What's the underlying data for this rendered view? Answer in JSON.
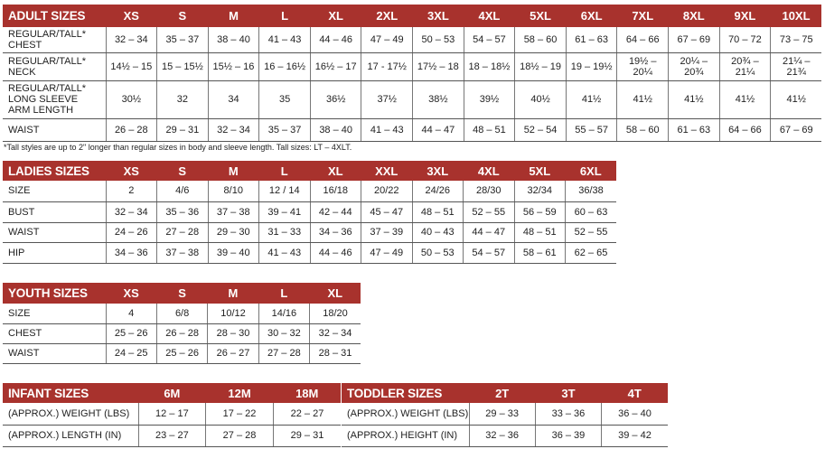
{
  "header_color": "#a8322d",
  "tables": [
    {
      "id": "adult",
      "title": "ADULT SIZES",
      "columns": [
        "XS",
        "S",
        "M",
        "L",
        "XL",
        "2XL",
        "3XL",
        "4XL",
        "5XL",
        "6XL",
        "7XL",
        "8XL",
        "9XL",
        "10XL"
      ],
      "rows": [
        {
          "label": "REGULAR/TALL*\nCHEST",
          "values": [
            "32 – 34",
            "35 – 37",
            "38 – 40",
            "41 – 43",
            "44 – 46",
            "47 – 49",
            "50 – 53",
            "54 – 57",
            "58 – 60",
            "61 – 63",
            "64 – 66",
            "67 – 69",
            "70 – 72",
            "73 – 75"
          ]
        },
        {
          "label": "REGULAR/TALL*\nNECK",
          "values": [
            "14½ – 15",
            "15 – 15½",
            "15½ – 16",
            "16 – 16½",
            "16½ – 17",
            "17 - 17½",
            "17½ – 18",
            "18 – 18½",
            "18½ – 19",
            "19 – 19½",
            "19½ –\n20¼",
            "20¼ –\n20¾",
            "20¾ –\n21¼",
            "21¼ –\n21¾"
          ]
        },
        {
          "label": "REGULAR/TALL*\nLONG SLEEVE\nARM LENGTH",
          "values": [
            "30½",
            "32",
            "34",
            "35",
            "36½",
            "37½",
            "38½",
            "39½",
            "40½",
            "41½",
            "41½",
            "41½",
            "41½",
            "41½"
          ]
        },
        {
          "label": "WAIST",
          "values": [
            "26 – 28",
            "29 – 31",
            "32 – 34",
            "35 – 37",
            "38 – 40",
            "41 – 43",
            "44 – 47",
            "48 – 51",
            "52 – 54",
            "55 – 57",
            "58 – 60",
            "61 – 63",
            "64 – 66",
            "67 – 69"
          ]
        }
      ],
      "footnote": "*Tall styles are up to 2\" longer than regular sizes in body and sleeve length. Tall sizes: LT – 4XLT."
    },
    {
      "id": "ladies",
      "title": "LADIES SIZES",
      "columns": [
        "XS",
        "S",
        "M",
        "L",
        "XL",
        "XXL",
        "3XL",
        "4XL",
        "5XL",
        "6XL"
      ],
      "rows": [
        {
          "label": "SIZE",
          "values": [
            "2",
            "4/6",
            "8/10",
            "12 / 14",
            "16/18",
            "20/22",
            "24/26",
            "28/30",
            "32/34",
            "36/38"
          ]
        },
        {
          "label": "BUST",
          "values": [
            "32 – 34",
            "35 – 36",
            "37 – 38",
            "39 – 41",
            "42 – 44",
            "45 – 47",
            "48 – 51",
            "52 – 55",
            "56 – 59",
            "60 – 63"
          ]
        },
        {
          "label": "WAIST",
          "values": [
            "24 – 26",
            "27 – 28",
            "29 – 30",
            "31 – 33",
            "34 – 36",
            "37 – 39",
            "40 – 43",
            "44 – 47",
            "48 – 51",
            "52 – 55"
          ]
        },
        {
          "label": "HIP",
          "values": [
            "34 – 36",
            "37 – 38",
            "39 – 40",
            "41 – 43",
            "44 – 46",
            "47 – 49",
            "50 – 53",
            "54 – 57",
            "58 – 61",
            "62 – 65"
          ]
        }
      ]
    },
    {
      "id": "youth",
      "title": "YOUTH SIZES",
      "columns": [
        "XS",
        "S",
        "M",
        "L",
        "XL"
      ],
      "rows": [
        {
          "label": "SIZE",
          "values": [
            "4",
            "6/8",
            "10/12",
            "14/16",
            "18/20"
          ]
        },
        {
          "label": "CHEST",
          "values": [
            "25 – 26",
            "26 – 28",
            "28 – 30",
            "30 – 32",
            "32 – 34"
          ]
        },
        {
          "label": "WAIST",
          "values": [
            "24 – 25",
            "25 – 26",
            "26 – 27",
            "27 – 28",
            "28 – 31"
          ]
        }
      ]
    },
    {
      "id": "infant",
      "title": "INFANT SIZES",
      "columns": [
        "6M",
        "12M",
        "18M"
      ],
      "rows": [
        {
          "label": "(APPROX.) WEIGHT (LBS)",
          "values": [
            "12 – 17",
            "17 – 22",
            "22 – 27"
          ]
        },
        {
          "label": "(APPROX.) LENGTH (IN)",
          "values": [
            "23 – 27",
            "27 – 28",
            "29 – 31"
          ]
        }
      ]
    },
    {
      "id": "toddler",
      "title": "TODDLER SIZES",
      "columns": [
        "2T",
        "3T",
        "4T"
      ],
      "rows": [
        {
          "label": "(APPROX.) WEIGHT (LBS)",
          "values": [
            "29 – 33",
            "33 – 36",
            "36 – 40"
          ]
        },
        {
          "label": "(APPROX.) HEIGHT (IN)",
          "values": [
            "32 – 36",
            "36 – 39",
            "39 – 42"
          ]
        }
      ]
    }
  ]
}
